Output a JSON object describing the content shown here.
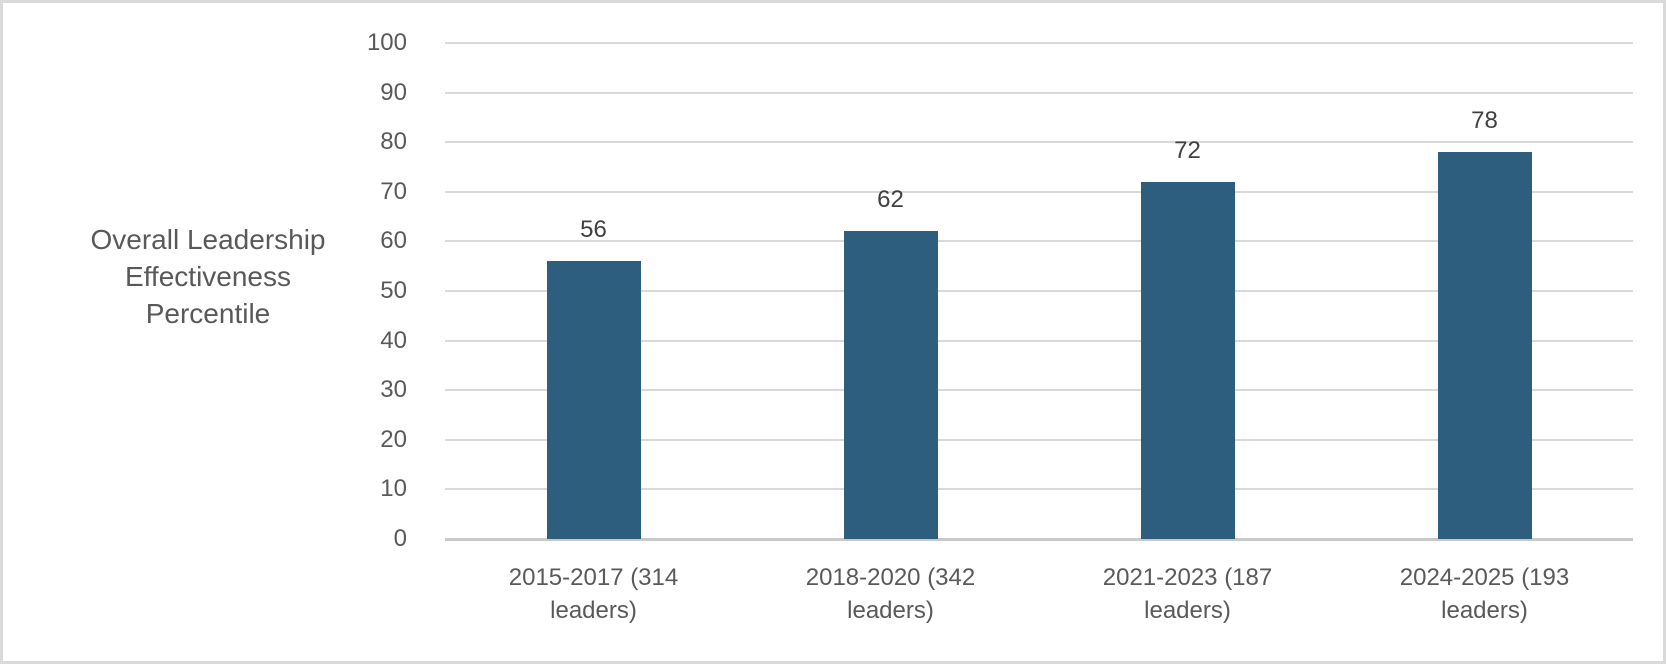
{
  "chart_data": {
    "type": "bar",
    "title": "",
    "xlabel": "",
    "ylabel": "Overall Leadership Effectiveness Percentile",
    "ylabel_lines": [
      "Overall Leadership",
      "Effectiveness",
      "Percentile"
    ],
    "categories": [
      "2015-2017 (314 leaders)",
      "2018-2020 (342 leaders)",
      "2021-2023 (187 leaders)",
      "2024-2025 (193 leaders)"
    ],
    "category_label_lines": [
      [
        "2015-2017 (314",
        "leaders)"
      ],
      [
        "2018-2020 (342",
        "leaders)"
      ],
      [
        "2021-2023 (187",
        "leaders)"
      ],
      [
        "2024-2025 (193",
        "leaders)"
      ]
    ],
    "values": [
      56,
      62,
      72,
      78
    ],
    "ylim": [
      0,
      100
    ],
    "ytick_step": 10,
    "yticks": [
      100,
      90,
      80,
      70,
      60,
      50,
      40,
      30,
      20,
      10,
      0
    ],
    "grid": true,
    "legend": false,
    "colors": {
      "bar": "#2E5E7D",
      "gridline": "#D9D9D9",
      "axis_line": "#C9C9C9",
      "tick_label": "#595959",
      "data_label": "#404040",
      "background": "#FFFFFF",
      "border": "#D9D9D9"
    }
  }
}
